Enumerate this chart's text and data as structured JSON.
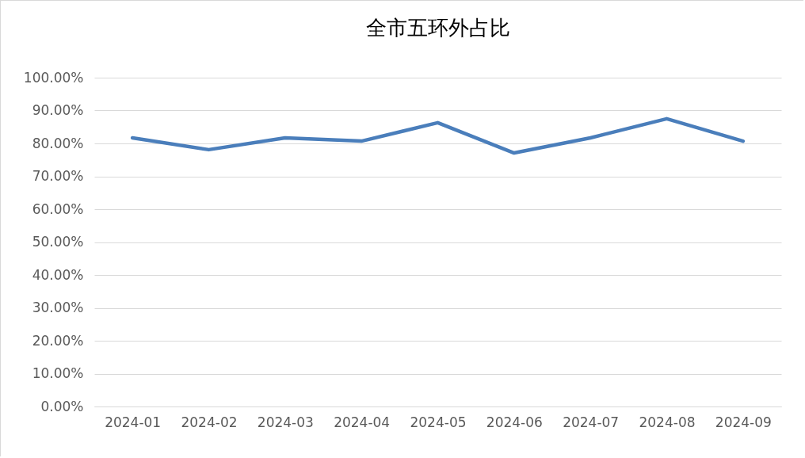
{
  "chart_data": {
    "type": "line",
    "title": "全市五环外占比",
    "categories": [
      "2024-01",
      "2024-02",
      "2024-03",
      "2024-04",
      "2024-05",
      "2024-06",
      "2024-07",
      "2024-08",
      "2024-09"
    ],
    "series": [
      {
        "color": "#4a7ebb",
        "values": [
          81.7,
          78.1,
          81.7,
          80.7,
          86.3,
          77.1,
          81.7,
          87.5,
          80.7
        ]
      }
    ],
    "ylim": [
      0,
      100
    ],
    "yticks": [
      {
        "value": 0,
        "label": "0.00%"
      },
      {
        "value": 10,
        "label": "10.00%"
      },
      {
        "value": 20,
        "label": "20.00%"
      },
      {
        "value": 30,
        "label": "30.00%"
      },
      {
        "value": 40,
        "label": "40.00%"
      },
      {
        "value": 50,
        "label": "50.00%"
      },
      {
        "value": 60,
        "label": "60.00%"
      },
      {
        "value": 70,
        "label": "70.00%"
      },
      {
        "value": 80,
        "label": "80.00%"
      },
      {
        "value": 90,
        "label": "90.00%"
      },
      {
        "value": 100,
        "label": "100.00%"
      }
    ],
    "grid": "y",
    "marker": "none",
    "line_style": "solid"
  }
}
